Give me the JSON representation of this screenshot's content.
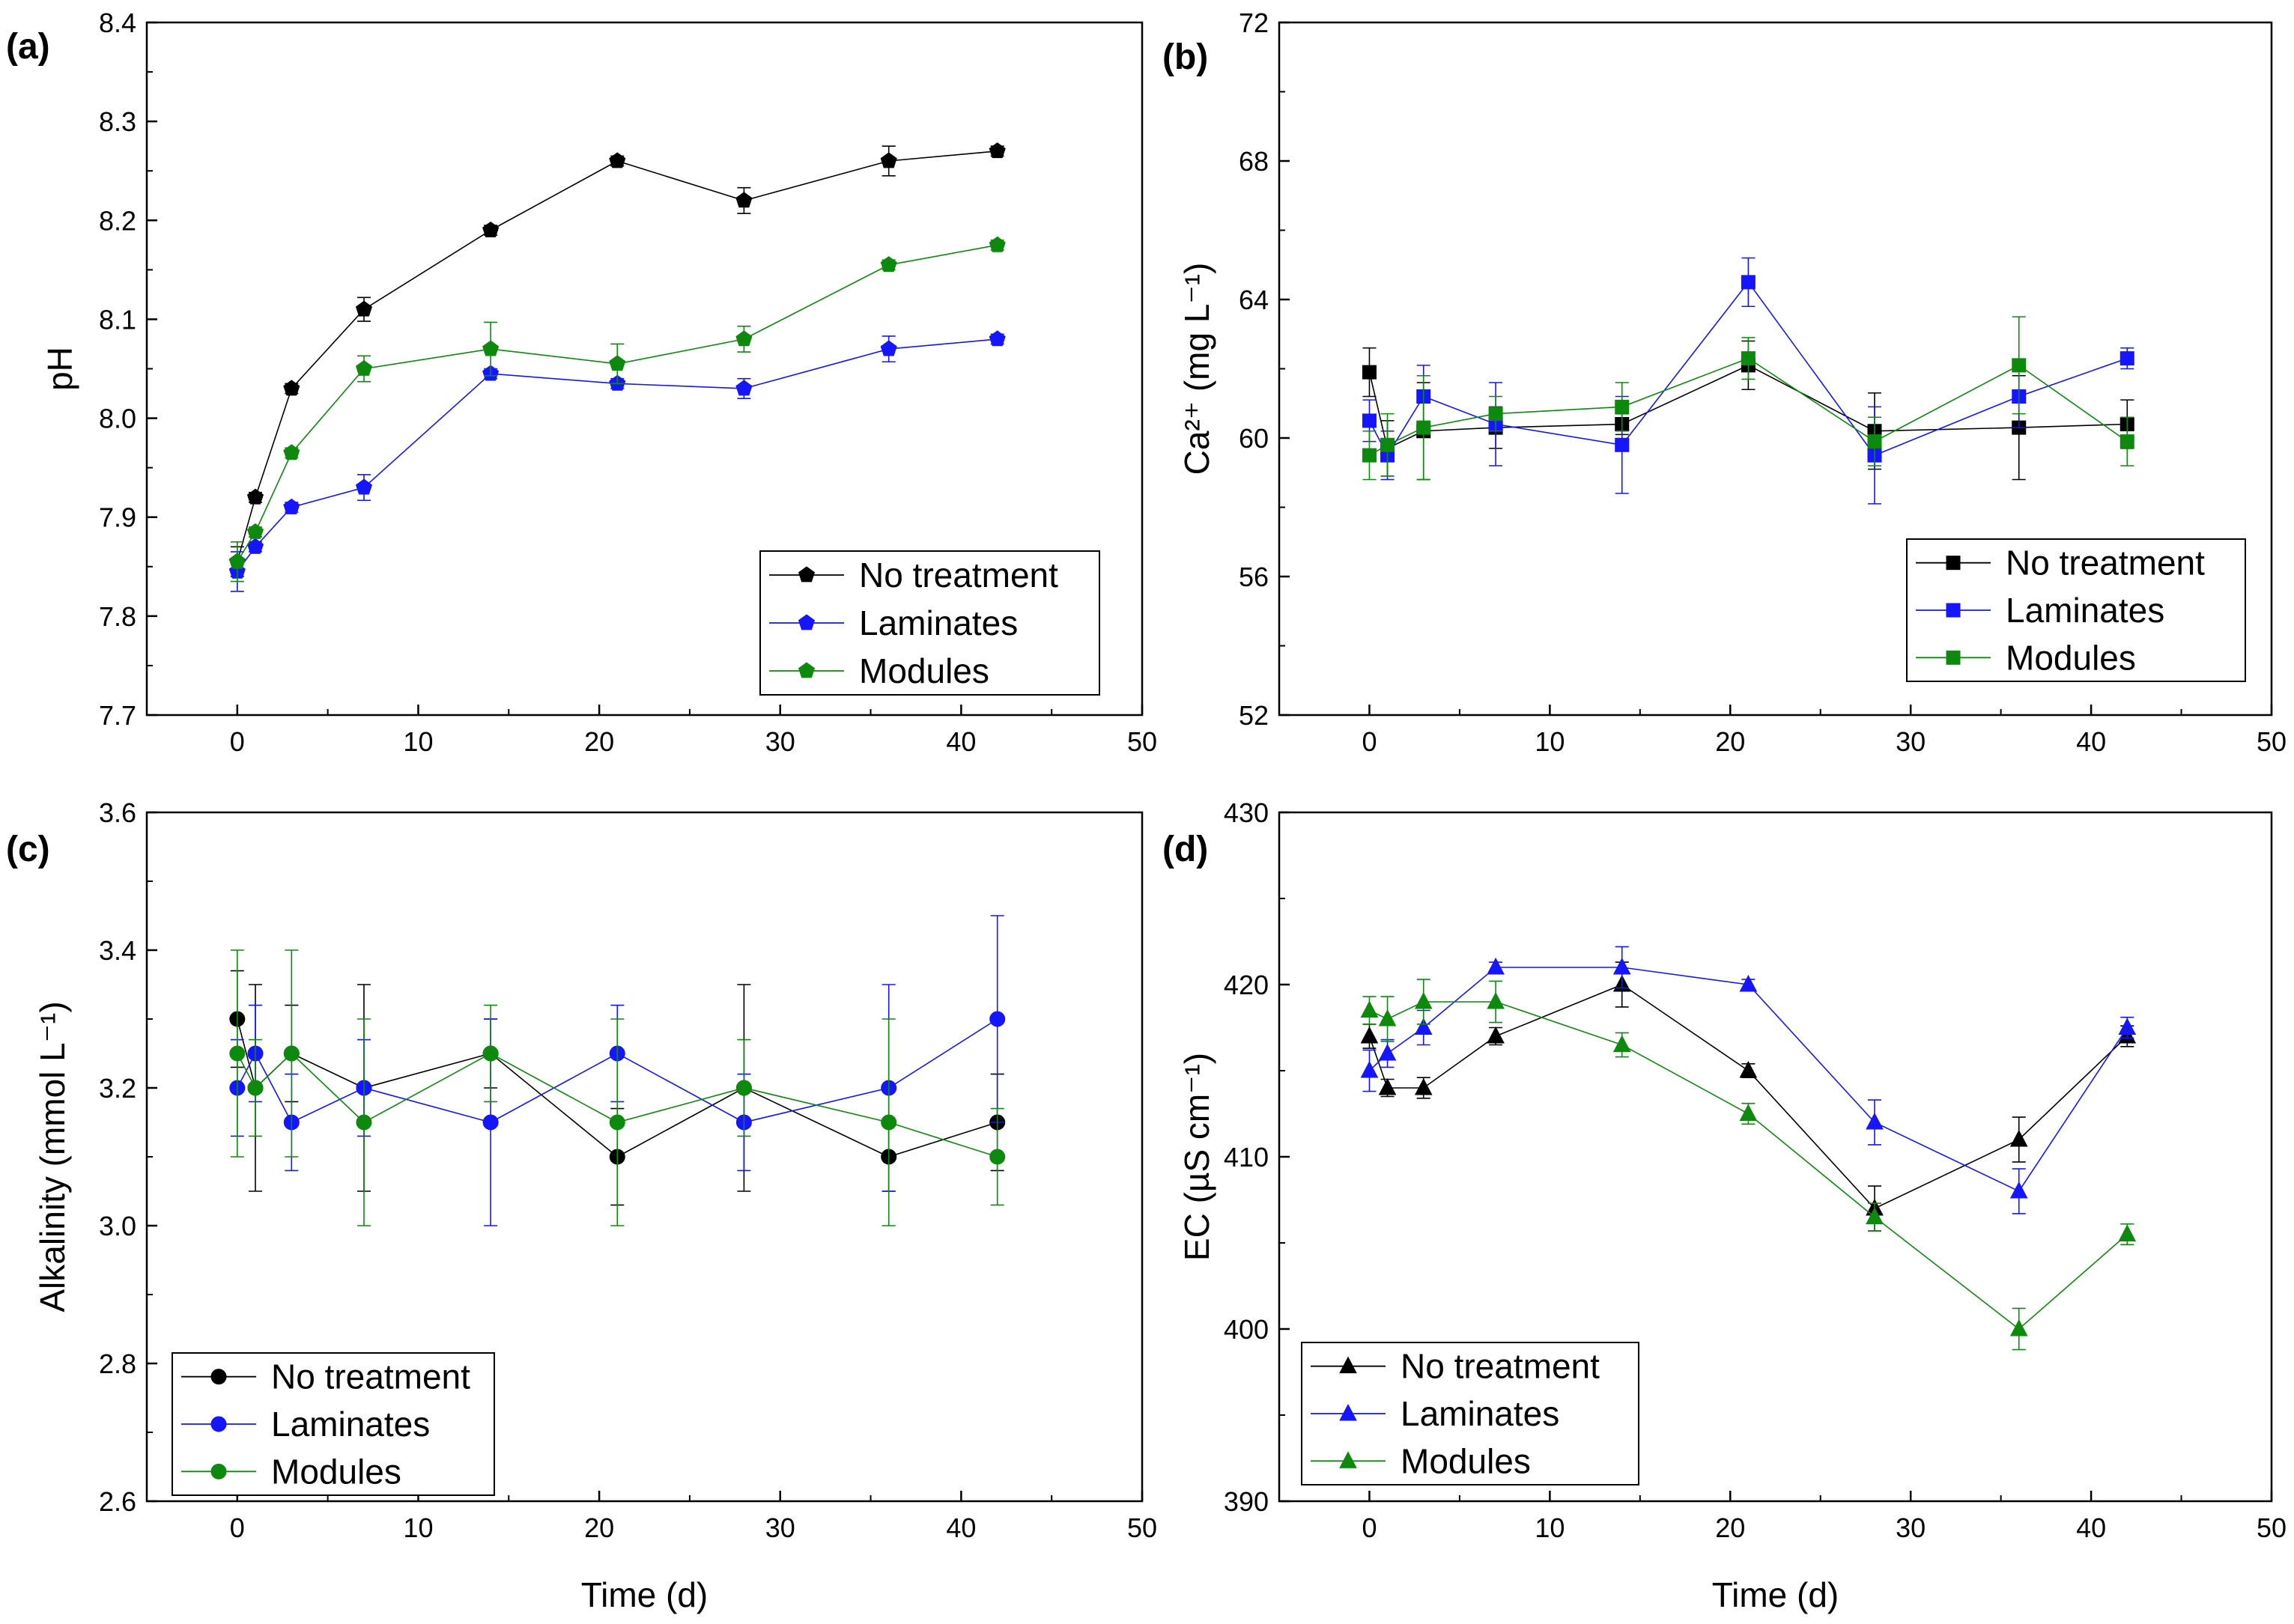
{
  "figure": {
    "xlabel_shared": "Time (d)",
    "colors": {
      "No treatment": "#000000",
      "Laminates": "#1515ff",
      "Modules": "#0d8a0d"
    }
  },
  "chart_data": [
    {
      "panel": "(a)",
      "type": "line",
      "marker": "pentagon",
      "title": "",
      "xlabel": "",
      "ylabel": "pH",
      "xlim": [
        -5,
        50
      ],
      "ylim": [
        7.7,
        8.4
      ],
      "xticks": [
        0,
        10,
        20,
        30,
        40,
        50
      ],
      "yticks": [
        7.7,
        7.8,
        7.9,
        8.0,
        8.1,
        8.2,
        8.3,
        8.4
      ],
      "ytick_labels": [
        "7.7",
        "7.8",
        "7.9",
        "8.0",
        "8.1",
        "8.2",
        "8.3",
        "8.4"
      ],
      "legend_position": "bottom-right",
      "x": [
        0,
        1,
        3,
        7,
        14,
        21,
        28,
        36,
        42
      ],
      "series": [
        {
          "name": "No treatment",
          "values": [
            7.855,
            7.92,
            8.03,
            8.11,
            8.19,
            8.26,
            8.22,
            8.26,
            8.27
          ],
          "errors": [
            0.015,
            0.005,
            0.005,
            0.012,
            0.005,
            0.005,
            0.013,
            0.015,
            0.005
          ]
        },
        {
          "name": "Laminates",
          "values": [
            7.845,
            7.87,
            7.91,
            7.93,
            8.045,
            8.035,
            8.03,
            8.07,
            8.08
          ],
          "errors": [
            0.02,
            0.005,
            0.005,
            0.013,
            0.005,
            0.005,
            0.01,
            0.013,
            0.005
          ]
        },
        {
          "name": "Modules",
          "values": [
            7.855,
            7.885,
            7.965,
            8.05,
            8.07,
            8.055,
            8.08,
            8.155,
            8.175
          ],
          "errors": [
            0.02,
            0.005,
            0.005,
            0.013,
            0.027,
            0.02,
            0.013,
            0.005,
            0.005
          ]
        }
      ]
    },
    {
      "panel": "(b)",
      "type": "line",
      "marker": "square",
      "title": "",
      "xlabel": "",
      "ylabel": "Ca²⁺ (mg L⁻¹)",
      "xlim": [
        -5,
        50
      ],
      "ylim": [
        52,
        72
      ],
      "xticks": [
        0,
        10,
        20,
        30,
        40,
        50
      ],
      "yticks": [
        52,
        56,
        60,
        64,
        68,
        72
      ],
      "ytick_labels": [
        "52",
        "56",
        "60",
        "64",
        "68",
        "72"
      ],
      "legend_position": "bottom-right",
      "x": [
        0,
        1,
        3,
        7,
        14,
        21,
        28,
        36,
        42
      ],
      "series": [
        {
          "name": "No treatment",
          "values": [
            61.9,
            59.7,
            60.2,
            60.3,
            60.4,
            62.1,
            60.2,
            60.3,
            60.4
          ],
          "errors": [
            0.7,
            0.8,
            1.4,
            0.6,
            0.3,
            0.7,
            1.1,
            1.5,
            0.7
          ]
        },
        {
          "name": "Laminates",
          "values": [
            60.5,
            59.5,
            61.2,
            60.4,
            59.8,
            64.5,
            59.5,
            61.2,
            62.3
          ],
          "errors": [
            0.6,
            0.7,
            0.9,
            1.2,
            1.4,
            0.7,
            1.4,
            0.9,
            0.3
          ]
        },
        {
          "name": "Modules",
          "values": [
            59.5,
            59.8,
            60.3,
            60.7,
            60.9,
            62.3,
            59.9,
            62.1,
            59.9
          ],
          "errors": [
            0.7,
            0.9,
            1.5,
            0.5,
            0.7,
            0.6,
            0.7,
            1.4,
            0.7
          ]
        }
      ]
    },
    {
      "panel": "(c)",
      "type": "line",
      "marker": "circle",
      "title": "",
      "xlabel": "Time (d)",
      "ylabel": "Alkalinity (mmol L⁻¹)",
      "xlim": [
        -5,
        50
      ],
      "ylim": [
        2.6,
        3.6
      ],
      "xticks": [
        0,
        10,
        20,
        30,
        40,
        50
      ],
      "yticks": [
        2.6,
        2.8,
        3.0,
        3.2,
        3.4,
        3.6
      ],
      "ytick_labels": [
        "2.6",
        "2.8",
        "3.0",
        "3.2",
        "3.4",
        "3.6"
      ],
      "legend_position": "bottom-left",
      "x": [
        0,
        1,
        3,
        7,
        14,
        21,
        28,
        36,
        42
      ],
      "series": [
        {
          "name": "No treatment",
          "values": [
            3.3,
            3.2,
            3.25,
            3.2,
            3.25,
            3.1,
            3.2,
            3.1,
            3.15
          ],
          "errors": [
            0.07,
            0.15,
            0.07,
            0.15,
            0.05,
            0.07,
            0.15,
            0.05,
            0.07
          ]
        },
        {
          "name": "Laminates",
          "values": [
            3.2,
            3.25,
            3.15,
            3.2,
            3.15,
            3.25,
            3.15,
            3.2,
            3.3
          ],
          "errors": [
            0.07,
            0.07,
            0.07,
            0.07,
            0.15,
            0.07,
            0.07,
            0.15,
            0.15
          ]
        },
        {
          "name": "Modules",
          "values": [
            3.25,
            3.2,
            3.25,
            3.15,
            3.25,
            3.15,
            3.2,
            3.15,
            3.1
          ],
          "errors": [
            0.15,
            0.07,
            0.15,
            0.15,
            0.07,
            0.15,
            0.07,
            0.15,
            0.07
          ]
        }
      ]
    },
    {
      "panel": "(d)",
      "type": "line",
      "marker": "triangle",
      "title": "",
      "xlabel": "Time (d)",
      "ylabel": "EC (µS cm⁻¹)",
      "xlim": [
        -5,
        50
      ],
      "ylim": [
        390,
        430
      ],
      "xticks": [
        0,
        10,
        20,
        30,
        40,
        50
      ],
      "yticks": [
        390,
        400,
        410,
        420,
        430
      ],
      "ytick_labels": [
        "390",
        "400",
        "410",
        "420",
        "430"
      ],
      "legend_position": "bottom-left",
      "x": [
        0,
        1,
        3,
        7,
        14,
        21,
        28,
        36,
        42
      ],
      "series": [
        {
          "name": "No treatment",
          "values": [
            417,
            414,
            414,
            417,
            420,
            415,
            407,
            411,
            417
          ],
          "errors": [
            0.7,
            0.5,
            0.6,
            0.5,
            1.3,
            0.4,
            1.3,
            1.3,
            0.6
          ]
        },
        {
          "name": "Laminates",
          "values": [
            415,
            416,
            417.5,
            421,
            421,
            420,
            412,
            408,
            417.5
          ],
          "errors": [
            1.2,
            0.8,
            1.0,
            0.3,
            1.2,
            0.3,
            1.3,
            1.3,
            0.6
          ]
        },
        {
          "name": "Modules",
          "values": [
            418.5,
            418,
            419,
            419,
            416.5,
            412.5,
            406.5,
            400,
            405.5
          ],
          "errors": [
            0.8,
            1.3,
            1.3,
            1.2,
            0.7,
            0.6,
            0.8,
            1.2,
            0.6
          ]
        }
      ]
    }
  ]
}
